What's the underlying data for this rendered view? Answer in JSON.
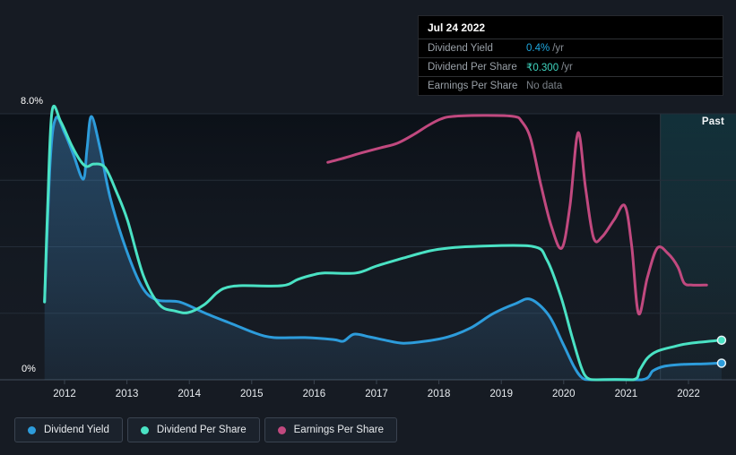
{
  "palette": {
    "dividend_yield": "#2d9cdb",
    "dividend_per_share": "#4ae2c4",
    "earnings_per_share": "#c1497f",
    "tooltip_yield_value": "#1fa8e0",
    "tooltip_dps_value": "#3fd6c0",
    "no_data": "#7a8087",
    "gridline": "#242d38",
    "axis_line": "#3b4450",
    "tick_label": "#e8ecf0",
    "past_band_border": "#2e3943"
  },
  "tooltip": {
    "date": "Jul 24 2022",
    "rows": [
      {
        "label": "Dividend Yield",
        "value": "0.4%",
        "suffix": "/yr",
        "color_key": "tooltip_yield_value"
      },
      {
        "label": "Dividend Per Share",
        "value": "₹0.300",
        "suffix": "/yr",
        "color_key": "tooltip_dps_value"
      },
      {
        "label": "Earnings Per Share",
        "value": "No data",
        "suffix": "",
        "color_key": "no_data"
      }
    ]
  },
  "past_label": "Past",
  "legend": {
    "items": [
      {
        "label": "Dividend Yield",
        "color_key": "dividend_yield"
      },
      {
        "label": "Dividend Per Share",
        "color_key": "dividend_per_share"
      },
      {
        "label": "Earnings Per Share",
        "color_key": "earnings_per_share"
      }
    ]
  },
  "chart_data": {
    "type": "line",
    "title": "Dividend history chart",
    "y_axis": {
      "top_label": "8.0%",
      "bottom_label": "0%",
      "ylim": [
        0,
        8
      ],
      "unit": "%",
      "gridline_values": [
        2,
        4,
        6,
        8
      ]
    },
    "x_axis": {
      "tick_years": [
        2012,
        2013,
        2014,
        2015,
        2016,
        2017,
        2018,
        2019,
        2020,
        2021,
        2022
      ],
      "xlim": [
        2011.63,
        2022.76
      ]
    },
    "past_band_start_year": 2021.55,
    "series": [
      {
        "name": "Dividend Yield",
        "color_key": "dividend_yield",
        "fill": true,
        "end_marker": true,
        "points": [
          [
            2011.68,
            2.34
          ],
          [
            2011.77,
            6.57
          ],
          [
            2011.86,
            7.87
          ],
          [
            2012.0,
            7.43
          ],
          [
            2012.14,
            6.79
          ],
          [
            2012.3,
            6.03
          ],
          [
            2012.36,
            6.95
          ],
          [
            2012.43,
            7.92
          ],
          [
            2012.57,
            6.95
          ],
          [
            2012.73,
            5.49
          ],
          [
            2012.98,
            3.96
          ],
          [
            2013.24,
            2.8
          ],
          [
            2013.48,
            2.4
          ],
          [
            2013.84,
            2.34
          ],
          [
            2014.27,
            1.99
          ],
          [
            2014.7,
            1.67
          ],
          [
            2015.06,
            1.4
          ],
          [
            2015.35,
            1.27
          ],
          [
            2015.85,
            1.27
          ],
          [
            2016.31,
            1.21
          ],
          [
            2016.47,
            1.16
          ],
          [
            2016.64,
            1.37
          ],
          [
            2016.89,
            1.29
          ],
          [
            2017.14,
            1.19
          ],
          [
            2017.43,
            1.1
          ],
          [
            2017.79,
            1.16
          ],
          [
            2018.15,
            1.29
          ],
          [
            2018.51,
            1.56
          ],
          [
            2018.87,
            1.99
          ],
          [
            2019.23,
            2.29
          ],
          [
            2019.47,
            2.42
          ],
          [
            2019.76,
            1.94
          ],
          [
            2019.99,
            1.08
          ],
          [
            2020.17,
            0.38
          ],
          [
            2020.3,
            0.05
          ],
          [
            2020.45,
            0
          ],
          [
            2021.25,
            0
          ],
          [
            2021.43,
            0.27
          ],
          [
            2021.6,
            0.4
          ],
          [
            2021.89,
            0.46
          ],
          [
            2022.24,
            0.48
          ],
          [
            2022.53,
            0.5
          ]
        ]
      },
      {
        "name": "Dividend Per Share",
        "color_key": "dividend_per_share",
        "fill": false,
        "end_marker": true,
        "points": [
          [
            2011.68,
            2.34
          ],
          [
            2011.73,
            5.23
          ],
          [
            2011.8,
            8.08
          ],
          [
            2011.94,
            7.76
          ],
          [
            2012.11,
            7.06
          ],
          [
            2012.26,
            6.57
          ],
          [
            2012.36,
            6.41
          ],
          [
            2012.47,
            6.49
          ],
          [
            2012.65,
            6.38
          ],
          [
            2012.83,
            5.66
          ],
          [
            2013.01,
            4.79
          ],
          [
            2013.26,
            3.15
          ],
          [
            2013.52,
            2.26
          ],
          [
            2013.77,
            2.07
          ],
          [
            2013.98,
            2.02
          ],
          [
            2014.24,
            2.26
          ],
          [
            2014.44,
            2.61
          ],
          [
            2014.59,
            2.77
          ],
          [
            2014.85,
            2.83
          ],
          [
            2015.49,
            2.83
          ],
          [
            2015.74,
            3.02
          ],
          [
            2015.97,
            3.15
          ],
          [
            2016.17,
            3.21
          ],
          [
            2016.67,
            3.21
          ],
          [
            2017.0,
            3.42
          ],
          [
            2017.43,
            3.66
          ],
          [
            2017.86,
            3.88
          ],
          [
            2018.15,
            3.96
          ],
          [
            2018.58,
            4.01
          ],
          [
            2019.5,
            4.01
          ],
          [
            2019.73,
            3.61
          ],
          [
            2019.95,
            2.53
          ],
          [
            2020.13,
            1.32
          ],
          [
            2020.28,
            0.38
          ],
          [
            2020.38,
            0.05
          ],
          [
            2020.52,
            0
          ],
          [
            2021.11,
            0
          ],
          [
            2021.22,
            0.3
          ],
          [
            2021.34,
            0.65
          ],
          [
            2021.5,
            0.86
          ],
          [
            2021.77,
            1.0
          ],
          [
            2022.03,
            1.1
          ],
          [
            2022.53,
            1.19
          ]
        ]
      },
      {
        "name": "Earnings Per Share",
        "color_key": "earnings_per_share",
        "fill": false,
        "end_marker": false,
        "points": [
          [
            2016.22,
            6.54
          ],
          [
            2016.5,
            6.68
          ],
          [
            2016.79,
            6.84
          ],
          [
            2017.07,
            6.98
          ],
          [
            2017.33,
            7.11
          ],
          [
            2017.6,
            7.38
          ],
          [
            2017.83,
            7.65
          ],
          [
            2018.03,
            7.84
          ],
          [
            2018.22,
            7.92
          ],
          [
            2018.72,
            7.95
          ],
          [
            2019.2,
            7.92
          ],
          [
            2019.33,
            7.76
          ],
          [
            2019.47,
            7.25
          ],
          [
            2019.63,
            5.9
          ],
          [
            2019.8,
            4.63
          ],
          [
            2019.97,
            3.96
          ],
          [
            2020.1,
            5.23
          ],
          [
            2020.23,
            7.43
          ],
          [
            2020.35,
            5.76
          ],
          [
            2020.48,
            4.26
          ],
          [
            2020.62,
            4.31
          ],
          [
            2020.81,
            4.82
          ],
          [
            2020.98,
            5.23
          ],
          [
            2021.09,
            4.01
          ],
          [
            2021.2,
            1.99
          ],
          [
            2021.34,
            3.07
          ],
          [
            2021.5,
            3.96
          ],
          [
            2021.67,
            3.8
          ],
          [
            2021.83,
            3.39
          ],
          [
            2021.93,
            2.91
          ],
          [
            2022.06,
            2.85
          ],
          [
            2022.29,
            2.85
          ]
        ]
      }
    ]
  }
}
